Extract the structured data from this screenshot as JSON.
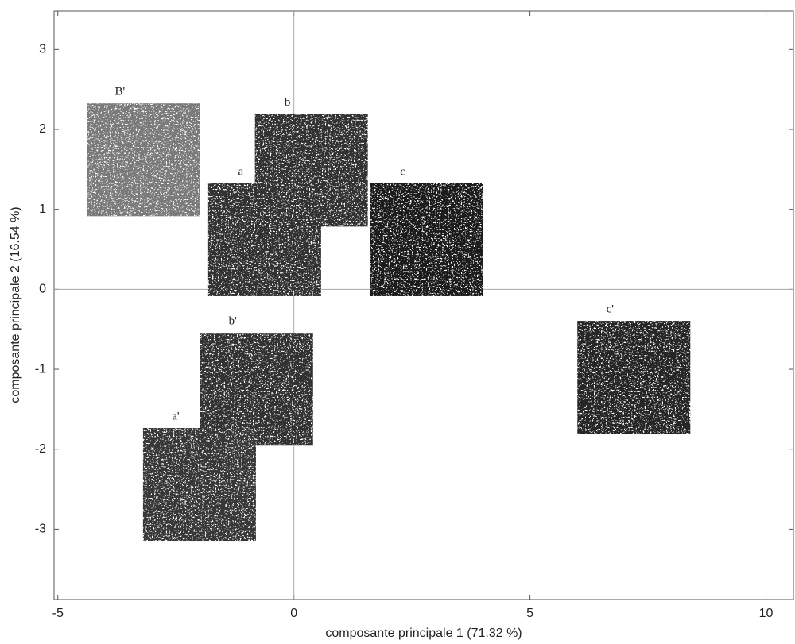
{
  "chart_data": {
    "type": "scatter",
    "x_label": "composante principale 1 (71.32 %)",
    "y_label": "composante principale 2 (16.54 %)",
    "labels": [
      "B'",
      "a",
      "b",
      "c",
      "c'",
      "b'",
      "a'"
    ],
    "x": [
      -3.18,
      -0.62,
      0.37,
      2.81,
      7.2,
      -0.79,
      -2.0
    ],
    "values": [
      1.62,
      0.62,
      1.49,
      0.62,
      -1.1,
      -1.25,
      -2.44
    ],
    "colors": [
      "#7a7a7a",
      "#333333",
      "#333333",
      "#1c1c1c",
      "#262626",
      "#303030",
      "#383838"
    ],
    "xlim": [
      -5.08,
      10.58
    ],
    "ylim": [
      -3.88,
      3.48
    ],
    "xticks": [
      -5,
      0,
      5,
      10
    ],
    "yticks": [
      -3,
      -2,
      -1,
      0,
      1,
      2,
      3
    ],
    "zero_lines": true
  }
}
